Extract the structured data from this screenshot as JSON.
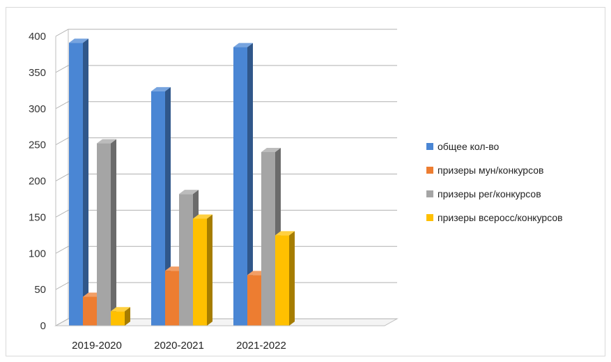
{
  "chart_data": {
    "type": "bar",
    "title": "",
    "xlabel": "",
    "ylabel": "",
    "ylim": [
      0,
      400
    ],
    "yticks": [
      "0",
      "50",
      "100",
      "150",
      "200",
      "250",
      "300",
      "350",
      "400"
    ],
    "categories": [
      "2019-2020",
      "2020-2021",
      "2021-2022"
    ],
    "grid": true,
    "legend_position": "right",
    "series": [
      {
        "name": "общее кол-во",
        "values": [
          391,
          324,
          385
        ],
        "color": "#4a86d4"
      },
      {
        "name": "призеры мун/конкурсов",
        "values": [
          40,
          76,
          70
        ],
        "color": "#ed7d31"
      },
      {
        "name": "призеры рег/конкурсов",
        "values": [
          252,
          182,
          240
        ],
        "color": "#a5a5a5"
      },
      {
        "name": "призеры всеросс/конкурсов",
        "values": [
          20,
          148,
          125
        ],
        "color": "#ffc000"
      }
    ]
  }
}
